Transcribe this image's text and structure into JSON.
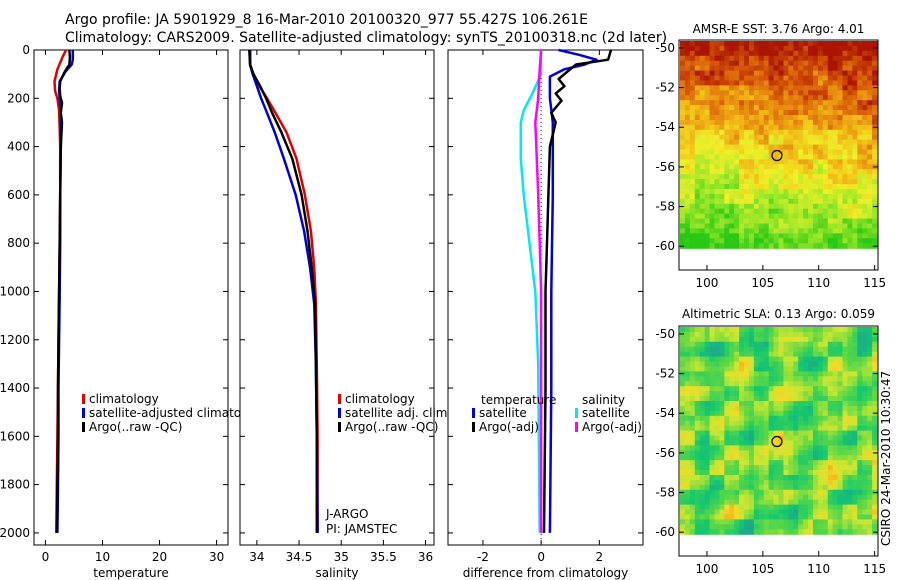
{
  "header": {
    "line1": "Argo profile: JA 5901929_8 16-Mar-2010 20100320_977 55.427S 106.261E",
    "line2": "Climatology: CARS2009. Satellite-adjusted climatology: synTS_20100318.nc (2d later)"
  },
  "colors": {
    "climatology": "#e00000",
    "satellite": "#0000dd",
    "argo": "#000000",
    "sat_salinity": "#00e8f0",
    "argo_salinity": "#ff00ff"
  },
  "chart_data": [
    {
      "type": "line",
      "name": "temperature-profile",
      "xlabel": "temperature",
      "xlim": [
        -2,
        32
      ],
      "xticks": [
        0,
        10,
        20,
        30
      ],
      "ylim": [
        2050,
        0
      ],
      "yticks": [
        0,
        200,
        400,
        600,
        800,
        1000,
        1200,
        1400,
        1600,
        1800,
        2000
      ],
      "legend": [
        "climatology",
        "satellite-adjusted climatology",
        "Argo(..raw -QC)"
      ],
      "series": [
        {
          "name": "climatology",
          "color": "climatology",
          "points": [
            [
              3.6,
              0
            ],
            [
              3.0,
              30
            ],
            [
              2.1,
              80
            ],
            [
              1.6,
              130
            ],
            [
              1.7,
              170
            ],
            [
              2.1,
              200
            ],
            [
              2.4,
              250
            ],
            [
              2.6,
              400
            ],
            [
              2.6,
              600
            ],
            [
              2.5,
              800
            ],
            [
              2.4,
              1000
            ],
            [
              2.3,
              1200
            ],
            [
              2.2,
              1400
            ],
            [
              2.1,
              1600
            ],
            [
              2.0,
              1800
            ],
            [
              1.9,
              2000
            ]
          ]
        },
        {
          "name": "satellite",
          "color": "satellite",
          "points": [
            [
              4.8,
              0
            ],
            [
              4.8,
              40
            ],
            [
              4.6,
              60
            ],
            [
              3.5,
              90
            ],
            [
              2.5,
              130
            ],
            [
              2.4,
              170
            ],
            [
              2.5,
              200
            ],
            [
              2.7,
              260
            ],
            [
              2.7,
              400
            ],
            [
              2.6,
              600
            ],
            [
              2.6,
              800
            ],
            [
              2.5,
              1000
            ],
            [
              2.4,
              1200
            ],
            [
              2.3,
              1400
            ],
            [
              2.3,
              1600
            ],
            [
              2.2,
              1800
            ],
            [
              2.1,
              2000
            ]
          ]
        },
        {
          "name": "argo",
          "color": "argo",
          "points": [
            [
              4.2,
              0
            ],
            [
              4.3,
              30
            ],
            [
              4.2,
              60
            ],
            [
              3.4,
              90
            ],
            [
              2.6,
              130
            ],
            [
              2.5,
              160
            ],
            [
              2.6,
              190
            ],
            [
              2.9,
              220
            ],
            [
              2.7,
              260
            ],
            [
              2.9,
              300
            ],
            [
              2.7,
              400
            ],
            [
              2.6,
              600
            ],
            [
              2.5,
              800
            ],
            [
              2.4,
              1000
            ],
            [
              2.3,
              1200
            ],
            [
              2.2,
              1400
            ],
            [
              2.2,
              1600
            ],
            [
              2.1,
              1800
            ],
            [
              2.0,
              2000
            ]
          ]
        }
      ]
    },
    {
      "type": "line",
      "name": "salinity-profile",
      "xlabel": "salinity",
      "xlim": [
        33.8,
        36.1
      ],
      "xticks": [
        34,
        34.5,
        35,
        35.5,
        36
      ],
      "ylim": [
        2050,
        0
      ],
      "legend": [
        "climatology",
        "satellite adj. clim.",
        "Argo(..raw -QC)"
      ],
      "annotations": [
        "J-ARGO",
        "PI: JAMSTEC"
      ],
      "series": [
        {
          "name": "climatology",
          "color": "climatology",
          "points": [
            [
              33.92,
              0
            ],
            [
              33.92,
              60
            ],
            [
              33.95,
              100
            ],
            [
              34.03,
              150
            ],
            [
              34.12,
              200
            ],
            [
              34.22,
              260
            ],
            [
              34.35,
              340
            ],
            [
              34.47,
              450
            ],
            [
              34.57,
              600
            ],
            [
              34.64,
              750
            ],
            [
              34.68,
              900
            ],
            [
              34.7,
              1050
            ],
            [
              34.71,
              1300
            ],
            [
              34.72,
              1600
            ],
            [
              34.72,
              2000
            ]
          ]
        },
        {
          "name": "satellite",
          "color": "satellite",
          "points": [
            [
              33.92,
              0
            ],
            [
              33.92,
              60
            ],
            [
              33.95,
              100
            ],
            [
              34.0,
              150
            ],
            [
              34.05,
              200
            ],
            [
              34.12,
              260
            ],
            [
              34.21,
              340
            ],
            [
              34.32,
              450
            ],
            [
              34.46,
              600
            ],
            [
              34.56,
              750
            ],
            [
              34.63,
              900
            ],
            [
              34.68,
              1050
            ],
            [
              34.7,
              1300
            ],
            [
              34.71,
              1600
            ],
            [
              34.72,
              2000
            ]
          ]
        },
        {
          "name": "argo",
          "color": "argo",
          "points": [
            [
              33.91,
              0
            ],
            [
              33.92,
              60
            ],
            [
              33.96,
              100
            ],
            [
              34.04,
              150
            ],
            [
              34.11,
              200
            ],
            [
              34.18,
              260
            ],
            [
              34.29,
              340
            ],
            [
              34.42,
              450
            ],
            [
              34.53,
              600
            ],
            [
              34.6,
              750
            ],
            [
              34.65,
              900
            ],
            [
              34.69,
              1050
            ],
            [
              34.7,
              1300
            ],
            [
              34.71,
              1600
            ],
            [
              34.71,
              2000
            ]
          ]
        }
      ]
    },
    {
      "type": "line",
      "name": "difference-profile",
      "xlabel": "difference from climatology",
      "xlim": [
        -3.2,
        3.5
      ],
      "xticks": [
        -2,
        0,
        2
      ],
      "ylim": [
        2050,
        0
      ],
      "legend": [
        "temperature",
        "satellite",
        "Argo(-adj)",
        "salinity",
        "satellite",
        "Argo(-adj)"
      ],
      "series": [
        {
          "name": "temperature-satellite",
          "color": "satellite",
          "points": [
            [
              0.6,
              0
            ],
            [
              1.3,
              20
            ],
            [
              1.9,
              40
            ],
            [
              1.5,
              60
            ],
            [
              0.8,
              80
            ],
            [
              0.3,
              110
            ],
            [
              0.3,
              200
            ],
            [
              0.4,
              300
            ],
            [
              0.4,
              600
            ],
            [
              0.35,
              1000
            ],
            [
              0.35,
              1400
            ],
            [
              0.3,
              2000
            ]
          ]
        },
        {
          "name": "temperature-argo",
          "color": "argo",
          "points": [
            [
              2.4,
              0
            ],
            [
              2.3,
              40
            ],
            [
              1.2,
              60
            ],
            [
              0.9,
              90
            ],
            [
              0.6,
              120
            ],
            [
              0.8,
              150
            ],
            [
              0.5,
              180
            ],
            [
              0.7,
              210
            ],
            [
              0.35,
              260
            ],
            [
              0.5,
              300
            ],
            [
              0.3,
              400
            ],
            [
              0.25,
              600
            ],
            [
              0.2,
              800
            ],
            [
              0.15,
              1000
            ],
            [
              0.15,
              1400
            ],
            [
              0.1,
              2000
            ]
          ]
        },
        {
          "name": "salinity-satellite",
          "color": "sat_salinity",
          "points": [
            [
              0,
              0
            ],
            [
              0,
              100
            ],
            [
              -0.3,
              180
            ],
            [
              -0.6,
              250
            ],
            [
              -0.7,
              300
            ],
            [
              -0.7,
              450
            ],
            [
              -0.6,
              600
            ],
            [
              -0.4,
              800
            ],
            [
              -0.2,
              1000
            ],
            [
              -0.1,
              1300
            ],
            [
              -0.05,
              2000
            ]
          ]
        },
        {
          "name": "salinity-argo",
          "color": "argo_salinity",
          "points": [
            [
              0,
              0
            ],
            [
              -0.05,
              80
            ],
            [
              -0.1,
              200
            ],
            [
              -0.2,
              300
            ],
            [
              -0.15,
              450
            ],
            [
              -0.1,
              600
            ],
            [
              -0.05,
              800
            ],
            [
              0,
              1000
            ],
            [
              0,
              2000
            ]
          ]
        }
      ]
    },
    {
      "type": "heatmap",
      "name": "amsre-sst-map",
      "title": "AMSR-E SST: 3.76 Argo: 4.01",
      "xlim": [
        97.5,
        115.3
      ],
      "xticks": [
        100,
        105,
        110,
        115
      ],
      "ylim": [
        -61.2,
        -49.6
      ],
      "yticks": [
        -50,
        -52,
        -54,
        -56,
        -58,
        -60
      ],
      "marker": [
        106.261,
        -55.427
      ]
    },
    {
      "type": "heatmap",
      "name": "altimetric-sla-map",
      "title": "Altimetric SLA: 0.13 Argo: 0.059",
      "xlim": [
        97.5,
        115.3
      ],
      "xticks": [
        100,
        105,
        110,
        115
      ],
      "ylim": [
        -61.2,
        -49.6
      ],
      "yticks": [
        -50,
        -52,
        -54,
        -56,
        -58,
        -60
      ],
      "marker": [
        106.261,
        -55.427
      ]
    }
  ],
  "credit": "CSIRO 24-Mar-2010 10:30:47"
}
